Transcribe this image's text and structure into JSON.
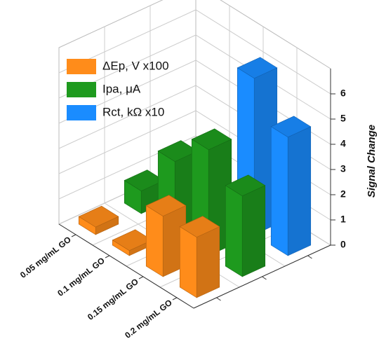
{
  "chart_data": {
    "type": "bar3d",
    "categories": [
      "0.05 mg/mL GO",
      "0.1 mg/mL GO",
      "0.15 mg/mL GO",
      "0.2 mg/mL GO"
    ],
    "series": [
      {
        "name": "ΔEp, V x100",
        "color": "#ff8c1a",
        "values": [
          0.3,
          0.2,
          2.4,
          2.4
        ]
      },
      {
        "name": "Ipa, μA",
        "color": "#1e9a1e",
        "values": [
          0.9,
          2.9,
          4.2,
          3.2
        ]
      },
      {
        "name": "Rct, kΩ x10",
        "color": "#1a8cff",
        "values": [
          null,
          null,
          6.2,
          4.7
        ]
      }
    ],
    "ylabel": "Signal Change",
    "ylim": [
      0,
      7
    ],
    "yticks": [
      0,
      1,
      2,
      3,
      4,
      5,
      6
    ],
    "grid": true,
    "legend": "upper left"
  }
}
